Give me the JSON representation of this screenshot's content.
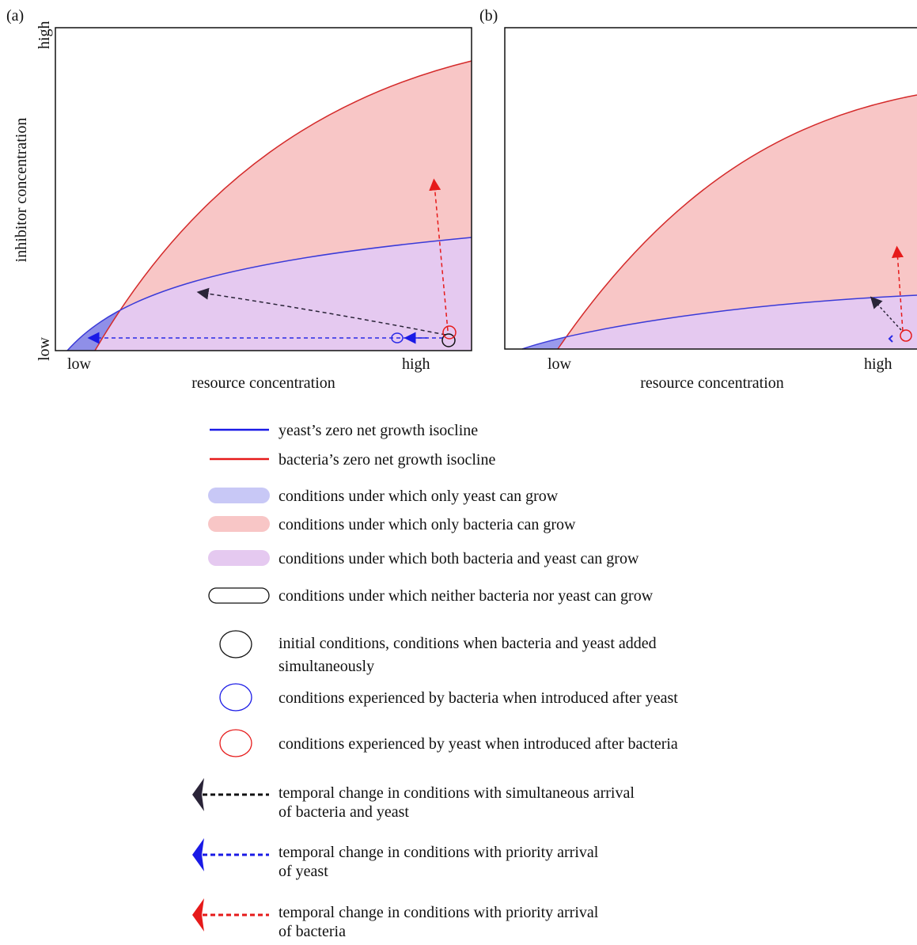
{
  "panels": [
    {
      "label": "(a)",
      "x_axis": {
        "title": "resource concentration",
        "low": "low",
        "high": "high"
      },
      "y_axis": {
        "title": "inhibitor concentration",
        "low": "low",
        "high": "high"
      }
    },
    {
      "label": "(b)",
      "x_axis": {
        "title": "resource concentration",
        "low": "low",
        "high": "high"
      }
    }
  ],
  "legend": [
    {
      "label": "yeast’s zero net growth isocline"
    },
    {
      "label": "bacteria’s zero net growth isocline"
    },
    {
      "label": "conditions under which only yeast can grow"
    },
    {
      "label": "conditions under which only bacteria can grow"
    },
    {
      "label": "conditions under which both bacteria and yeast can grow"
    },
    {
      "label": "conditions under which neither bacteria nor yeast can grow"
    },
    {
      "lines": [
        "initial conditions, conditions when bacteria and yeast added",
        "simultaneously"
      ]
    },
    {
      "label": "conditions experienced by bacteria when introduced after yeast"
    },
    {
      "label": "conditions experienced by yeast when introduced after bacteria"
    },
    {
      "lines": [
        "temporal change in conditions with simultaneous arrival",
        "of bacteria and yeast"
      ]
    },
    {
      "lines": [
        "temporal change in conditions with priority arrival",
        "of yeast"
      ]
    },
    {
      "lines": [
        "temporal change in conditions with priority arrival",
        "of bacteria"
      ]
    }
  ]
}
